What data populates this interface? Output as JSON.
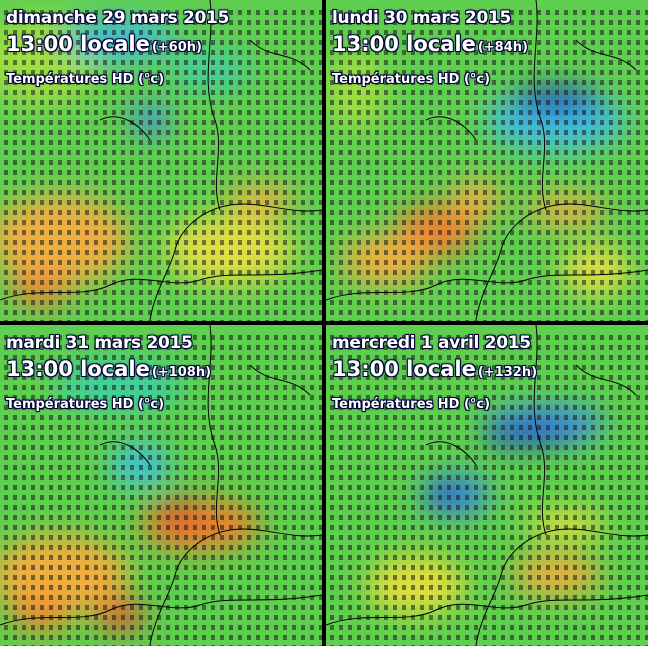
{
  "panels": [
    {
      "date": "dimanche 29 mars 2015",
      "hour": "13:00 locale",
      "offset": "(+60h)",
      "layer": "Températures HD (°c)"
    },
    {
      "date": "lundi 30 mars 2015",
      "hour": "13:00 locale",
      "offset": "(+84h)",
      "layer": "Températures HD (°c)"
    },
    {
      "date": "mardi 31 mars 2015",
      "hour": "13:00 locale",
      "offset": "(+108h)",
      "layer": "Températures HD (°c)"
    },
    {
      "date": "mercredi 1 avril 2015",
      "hour": "13:00 locale",
      "offset": "(+132h)",
      "layer": "Températures HD (°c)"
    }
  ],
  "colors": {
    "frame": "#000000",
    "scale": [
      "#1f3fbf",
      "#3f8fdf",
      "#3fbfdf",
      "#3fcf9f",
      "#5fcf4f",
      "#9fdf3f",
      "#dfdf3f",
      "#efaf3f",
      "#ef7f2f",
      "#df4f2f"
    ],
    "label_text": "#ffffff"
  }
}
